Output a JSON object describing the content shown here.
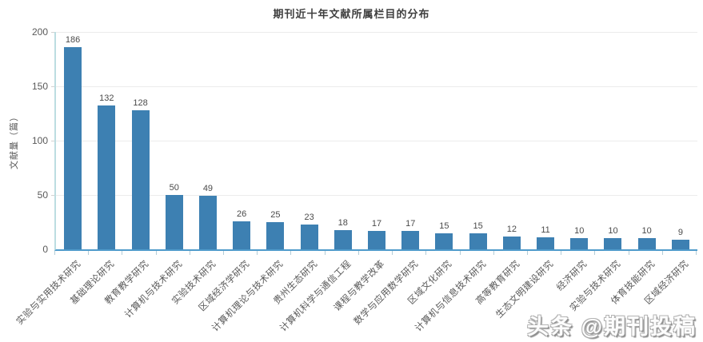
{
  "title": "期刊近十年文献所属栏目的分布",
  "watermark": {
    "text": "头条 @期刊投稿"
  },
  "chart_data": {
    "type": "bar",
    "title": "期刊近十年文献所属栏目的分布",
    "xlabel": "",
    "ylabel": "文献量（篇）",
    "ylim": [
      0,
      200
    ],
    "yticks": [
      0,
      50,
      100,
      150,
      200
    ],
    "grid": true,
    "legend": false,
    "bar_color": "#3d80b2",
    "axis_colors": {
      "y_axis_line": "#bcdde1",
      "x_axis_line": "#4f9bcb",
      "gridline": "#ececec"
    },
    "categories": [
      "实验与实用技术研究",
      "基础理论研究",
      "教育教学研究",
      "计算机与技术研究",
      "实验技术研究",
      "区域经济学研究",
      "计算机理论与技术研究",
      "贵州生态研究",
      "计算机科学与通信工程",
      "课程与教学改革",
      "数学与应用数学研究",
      "区域文化研究",
      "计算机与信息技术研究",
      "高等教育研究",
      "生态文明建设研究",
      "经济研究",
      "实验与技术研究",
      "体育技能研究",
      "区域经济研究"
    ],
    "values": [
      186,
      132,
      128,
      50,
      49,
      26,
      25,
      23,
      18,
      17,
      17,
      15,
      15,
      12,
      11,
      10,
      10,
      10,
      9
    ]
  }
}
